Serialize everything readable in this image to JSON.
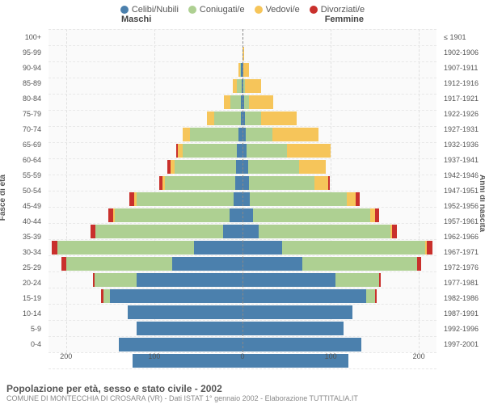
{
  "legend": [
    {
      "label": "Celibi/Nubili",
      "color": "#4b80ad"
    },
    {
      "label": "Coniugati/e",
      "color": "#aed092"
    },
    {
      "label": "Vedovi/e",
      "color": "#f6c55a"
    },
    {
      "label": "Divorziati/e",
      "color": "#c9302c"
    }
  ],
  "gender_left": "Maschi",
  "gender_right": "Femmine",
  "axis_left_title": "Fasce di età",
  "axis_right_title": "Anni di nascita",
  "chart": {
    "type": "pyramid-stacked-bar",
    "xlim": 220,
    "x_ticks": [
      200,
      100,
      0,
      100,
      200
    ],
    "background_color": "#fafafa",
    "grid_color": "#e0e0e0",
    "center_line_color": "#888888",
    "bar_colors": [
      "#4b80ad",
      "#aed092",
      "#f6c55a",
      "#c9302c"
    ],
    "age_labels": [
      "100+",
      "95-99",
      "90-94",
      "85-89",
      "80-84",
      "75-79",
      "70-74",
      "65-69",
      "60-64",
      "55-59",
      "50-54",
      "45-49",
      "40-44",
      "35-39",
      "30-34",
      "25-29",
      "20-24",
      "15-19",
      "10-14",
      "5-9",
      "0-4"
    ],
    "birth_labels": [
      "≤ 1901",
      "1902-1906",
      "1907-1911",
      "1912-1916",
      "1917-1921",
      "1922-1926",
      "1927-1931",
      "1932-1936",
      "1937-1941",
      "1942-1946",
      "1947-1951",
      "1952-1956",
      "1957-1961",
      "1962-1966",
      "1967-1971",
      "1972-1976",
      "1977-1981",
      "1982-1986",
      "1987-1991",
      "1992-1996",
      "1997-2001"
    ],
    "male": [
      [
        0,
        0,
        0,
        0
      ],
      [
        0,
        0,
        0,
        0
      ],
      [
        2,
        1,
        2,
        0
      ],
      [
        1,
        5,
        5,
        0
      ],
      [
        2,
        12,
        7,
        0
      ],
      [
        2,
        30,
        8,
        0
      ],
      [
        5,
        55,
        8,
        0
      ],
      [
        6,
        62,
        5,
        2
      ],
      [
        7,
        70,
        5,
        3
      ],
      [
        8,
        80,
        3,
        3
      ],
      [
        10,
        110,
        3,
        5
      ],
      [
        15,
        130,
        2,
        5
      ],
      [
        22,
        145,
        0,
        5
      ],
      [
        55,
        155,
        0,
        6
      ],
      [
        80,
        120,
        0,
        5
      ],
      [
        120,
        48,
        0,
        2
      ],
      [
        150,
        8,
        0,
        2
      ],
      [
        130,
        0,
        0,
        0
      ],
      [
        120,
        0,
        0,
        0
      ],
      [
        140,
        0,
        0,
        0
      ],
      [
        125,
        0,
        0,
        0
      ]
    ],
    "female": [
      [
        0,
        0,
        0,
        0
      ],
      [
        0,
        0,
        2,
        0
      ],
      [
        1,
        0,
        6,
        0
      ],
      [
        1,
        2,
        18,
        0
      ],
      [
        2,
        5,
        28,
        0
      ],
      [
        3,
        18,
        40,
        0
      ],
      [
        4,
        30,
        52,
        0
      ],
      [
        5,
        45,
        50,
        0
      ],
      [
        6,
        58,
        30,
        0
      ],
      [
        7,
        75,
        15,
        2
      ],
      [
        8,
        110,
        10,
        5
      ],
      [
        12,
        133,
        5,
        5
      ],
      [
        18,
        150,
        2,
        5
      ],
      [
        45,
        162,
        2,
        6
      ],
      [
        68,
        130,
        0,
        5
      ],
      [
        105,
        50,
        0,
        2
      ],
      [
        140,
        10,
        0,
        2
      ],
      [
        125,
        0,
        0,
        0
      ],
      [
        115,
        0,
        0,
        0
      ],
      [
        135,
        0,
        0,
        0
      ],
      [
        120,
        0,
        0,
        0
      ]
    ]
  },
  "title": "Popolazione per età, sesso e stato civile - 2002",
  "subtitle": "COMUNE DI MONTECCHIA DI CROSARA (VR) - Dati ISTAT 1° gennaio 2002 - Elaborazione TUTTITALIA.IT"
}
